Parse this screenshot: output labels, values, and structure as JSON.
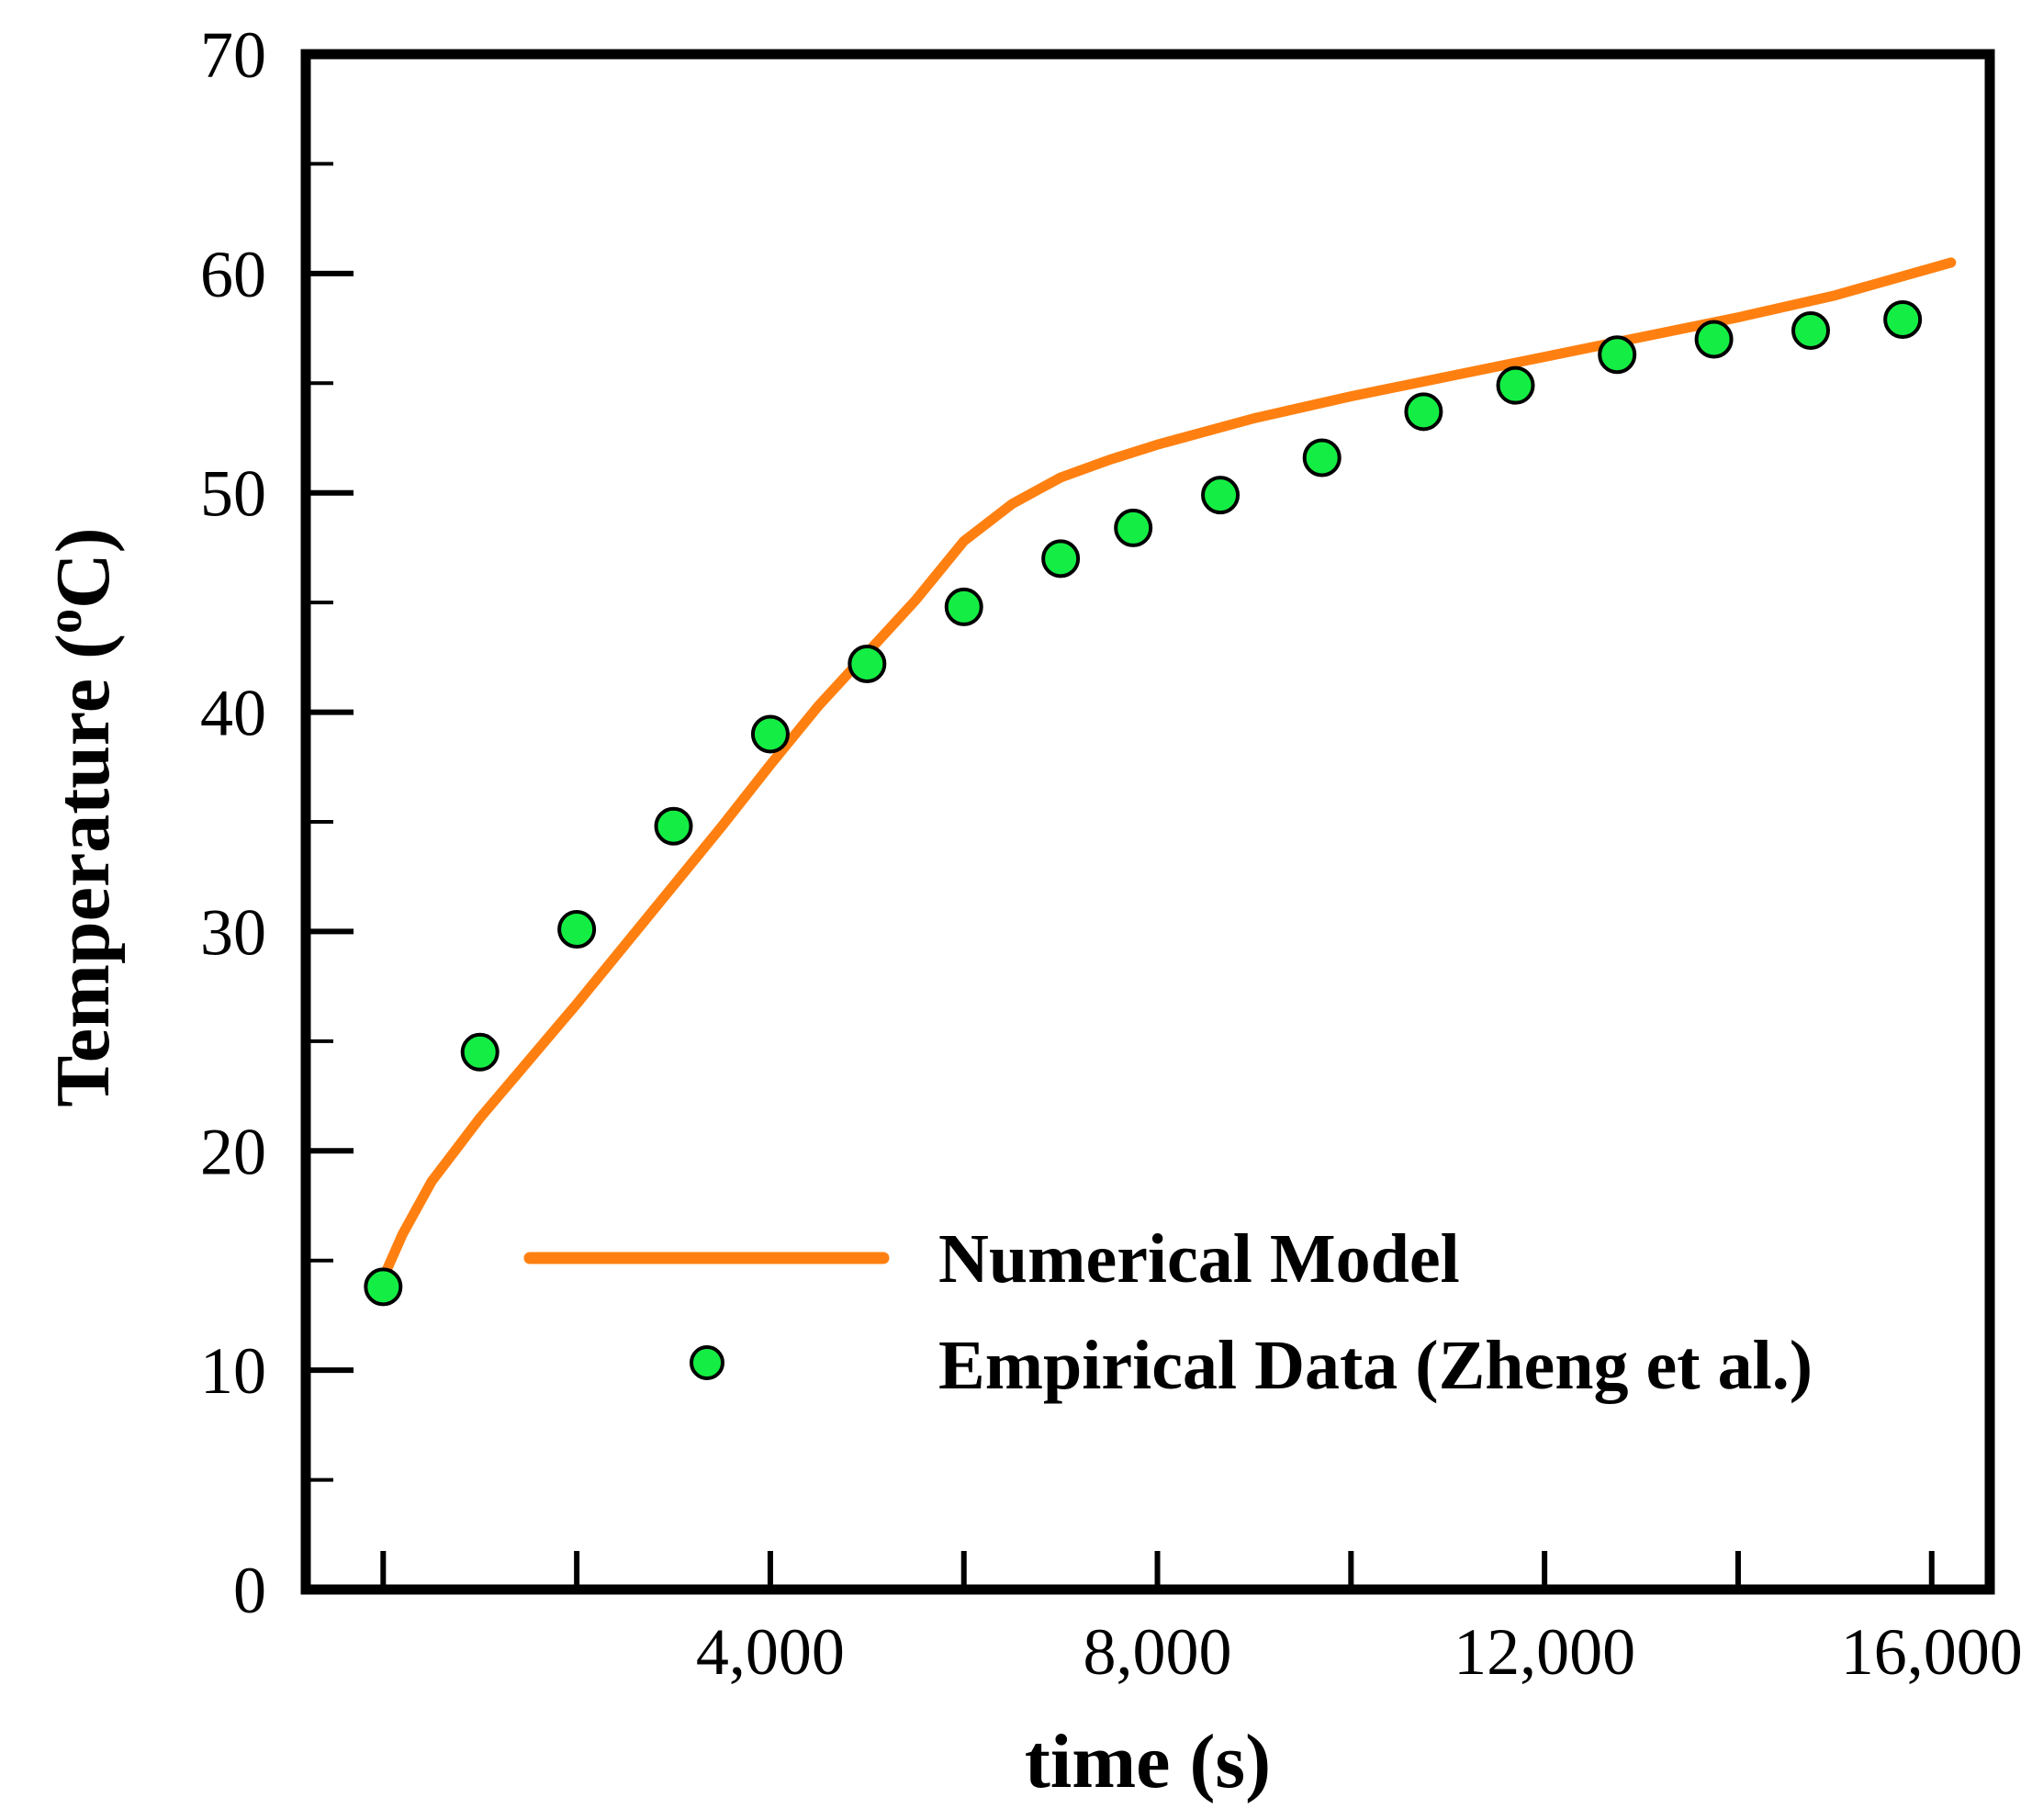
{
  "chart_data": {
    "type": "line+scatter",
    "title": "",
    "xlabel": "time (s)",
    "ylabel_main": "Temperature (",
    "ylabel_sup": "o",
    "ylabel_tail": "C)",
    "xlim": [
      -800,
      16600
    ],
    "ylim": [
      0,
      70
    ],
    "x_major_ticks": [
      0,
      2000,
      4000,
      6000,
      8000,
      10000,
      12000,
      14000,
      16000
    ],
    "x_tick_labels": [
      {
        "value": 4000,
        "label": "4,000"
      },
      {
        "value": 8000,
        "label": "8,000"
      },
      {
        "value": 12000,
        "label": "12,000"
      },
      {
        "value": 16000,
        "label": "16,000"
      }
    ],
    "y_major_ticks": [
      0,
      10,
      20,
      30,
      40,
      50,
      60,
      70
    ],
    "y_minor_ticks": [
      5,
      15,
      25,
      35,
      45,
      55,
      65
    ],
    "y_tick_labels": [
      "0",
      "10",
      "20",
      "30",
      "40",
      "50",
      "60",
      "70"
    ],
    "series": [
      {
        "name": "Numerical Model",
        "kind": "line",
        "color": "#ff8011",
        "x": [
          0,
          200,
          500,
          1000,
          1500,
          2000,
          2500,
          3000,
          3500,
          4000,
          4500,
          5000,
          5500,
          6000,
          6500,
          7000,
          7500,
          8000,
          9000,
          10000,
          11000,
          12000,
          13000,
          14000,
          15000,
          16200
        ],
        "y": [
          14.2,
          16.2,
          18.6,
          21.5,
          24.1,
          26.7,
          29.4,
          32.1,
          34.8,
          37.6,
          40.3,
          42.7,
          45.1,
          47.8,
          49.5,
          50.7,
          51.5,
          52.2,
          53.4,
          54.4,
          55.3,
          56.2,
          57.1,
          58.0,
          59.0,
          60.5
        ]
      },
      {
        "name": "Empirical Data (Zheng et al.)",
        "kind": "scatter",
        "color": "#14ee44",
        "x": [
          0,
          1000,
          2000,
          3000,
          4000,
          5000,
          6000,
          7000,
          7750,
          8650,
          9700,
          10750,
          11700,
          12750,
          13750,
          14750,
          15700
        ],
        "y": [
          13.8,
          24.5,
          30.1,
          34.8,
          39.0,
          42.2,
          44.8,
          47.0,
          48.4,
          49.9,
          51.6,
          53.7,
          54.9,
          56.3,
          57.0,
          57.4,
          57.9
        ]
      }
    ],
    "legend": {
      "placement": "lower-right",
      "line_label": "Numerical Model",
      "marker_label": "Empirical Data (Zheng et al.)"
    }
  }
}
